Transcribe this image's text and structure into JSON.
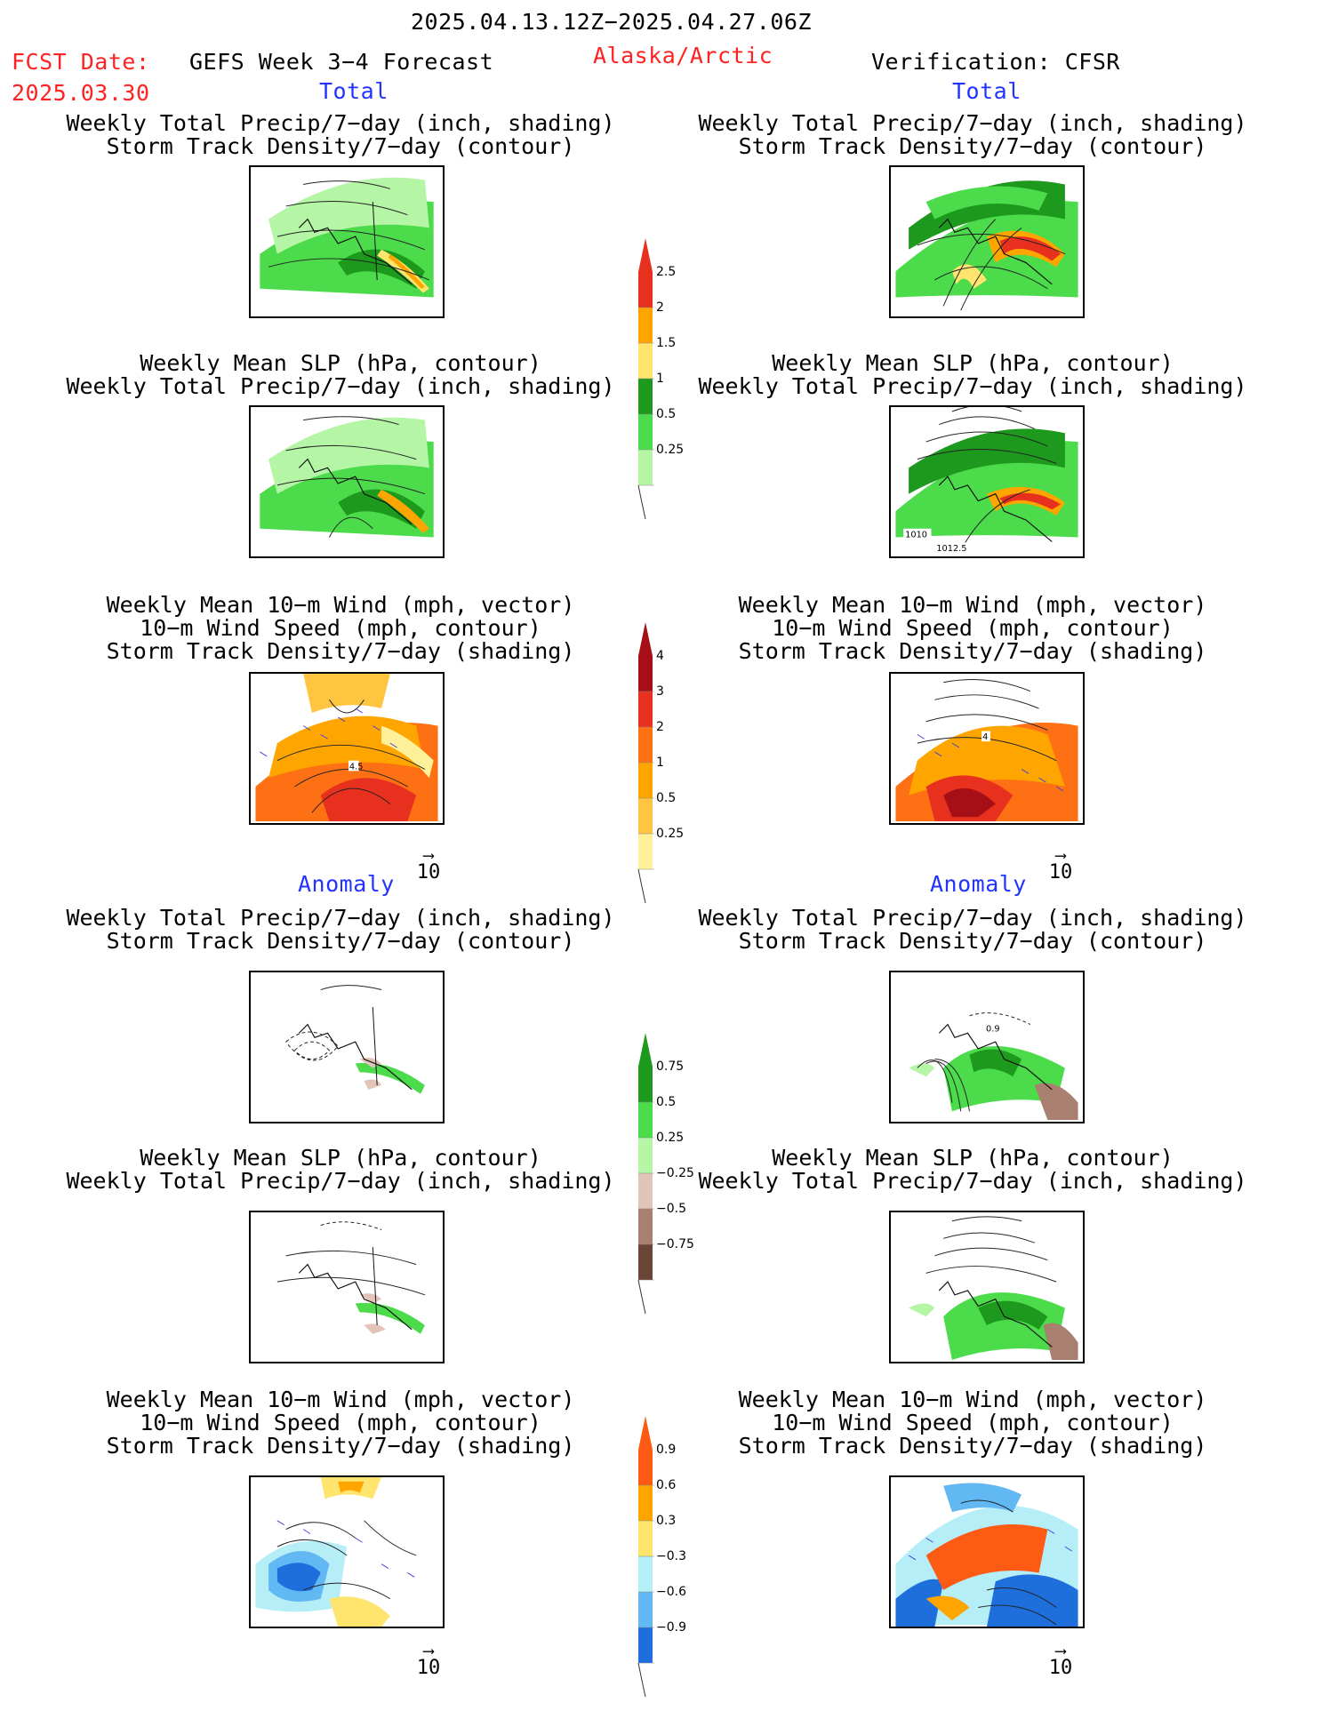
{
  "header": {
    "date_range": "2025.04.13.12Z−2025.04.27.06Z",
    "fcst_label": "FCST Date:",
    "fcst_date": "2025.03.30",
    "model_title": "GEFS Week 3−4 Forecast",
    "region": "Alaska/Arctic",
    "verification": "Verification: CFSR"
  },
  "sections": {
    "total": "Total",
    "anomaly": "Anomaly"
  },
  "titles": {
    "precip_storm": "Weekly Total Precip/7−day (inch, shading)\nStorm Track Density/7−day (contour)",
    "slp_precip": "Weekly Mean SLP (hPa, contour)\nWeekly Total Precip/7−day (inch, shading)",
    "wind_storm": "Weekly Mean 10−m Wind (mph, vector)\n10−m Wind Speed (mph, contour)\nStorm Track Density/7−day (shading)"
  },
  "vector_ref": "10",
  "map_labels": [
    "1010",
    "1012.5",
    "4",
    "4.5",
    "0.9"
  ],
  "colorbars": {
    "precip_total": {
      "labels": [
        "2.5",
        "2",
        "1.5",
        "1",
        "0.5",
        "0.25"
      ],
      "colors": [
        "#e8301f",
        "#ffa500",
        "#ffe46e",
        "#1d9a1d",
        "#4bdb4b",
        "#b4f5a6"
      ]
    },
    "storm_total": {
      "labels": [
        "4",
        "3",
        "2",
        "1",
        "0.5",
        "0.25"
      ],
      "colors": [
        "#a50f15",
        "#e8301f",
        "#fd7013",
        "#ffa500",
        "#ffc440",
        "#fff09a"
      ]
    },
    "precip_anom": {
      "labels": [
        "0.75",
        "0.5",
        "0.25",
        "−0.25",
        "−0.5",
        "−0.75"
      ],
      "colors": [
        "#1d9a1d",
        "#4bdb4b",
        "#b4f5a6",
        "#e3c4b8",
        "#a98070",
        "#6b4636"
      ]
    },
    "storm_anom": {
      "labels": [
        "0.9",
        "0.6",
        "0.3",
        "−0.3",
        "−0.6",
        "−0.9"
      ],
      "colors": [
        "#fd5a13",
        "#ffa500",
        "#ffe46e",
        "#b6eef8",
        "#62b8f2",
        "#1e6fdc"
      ]
    }
  }
}
